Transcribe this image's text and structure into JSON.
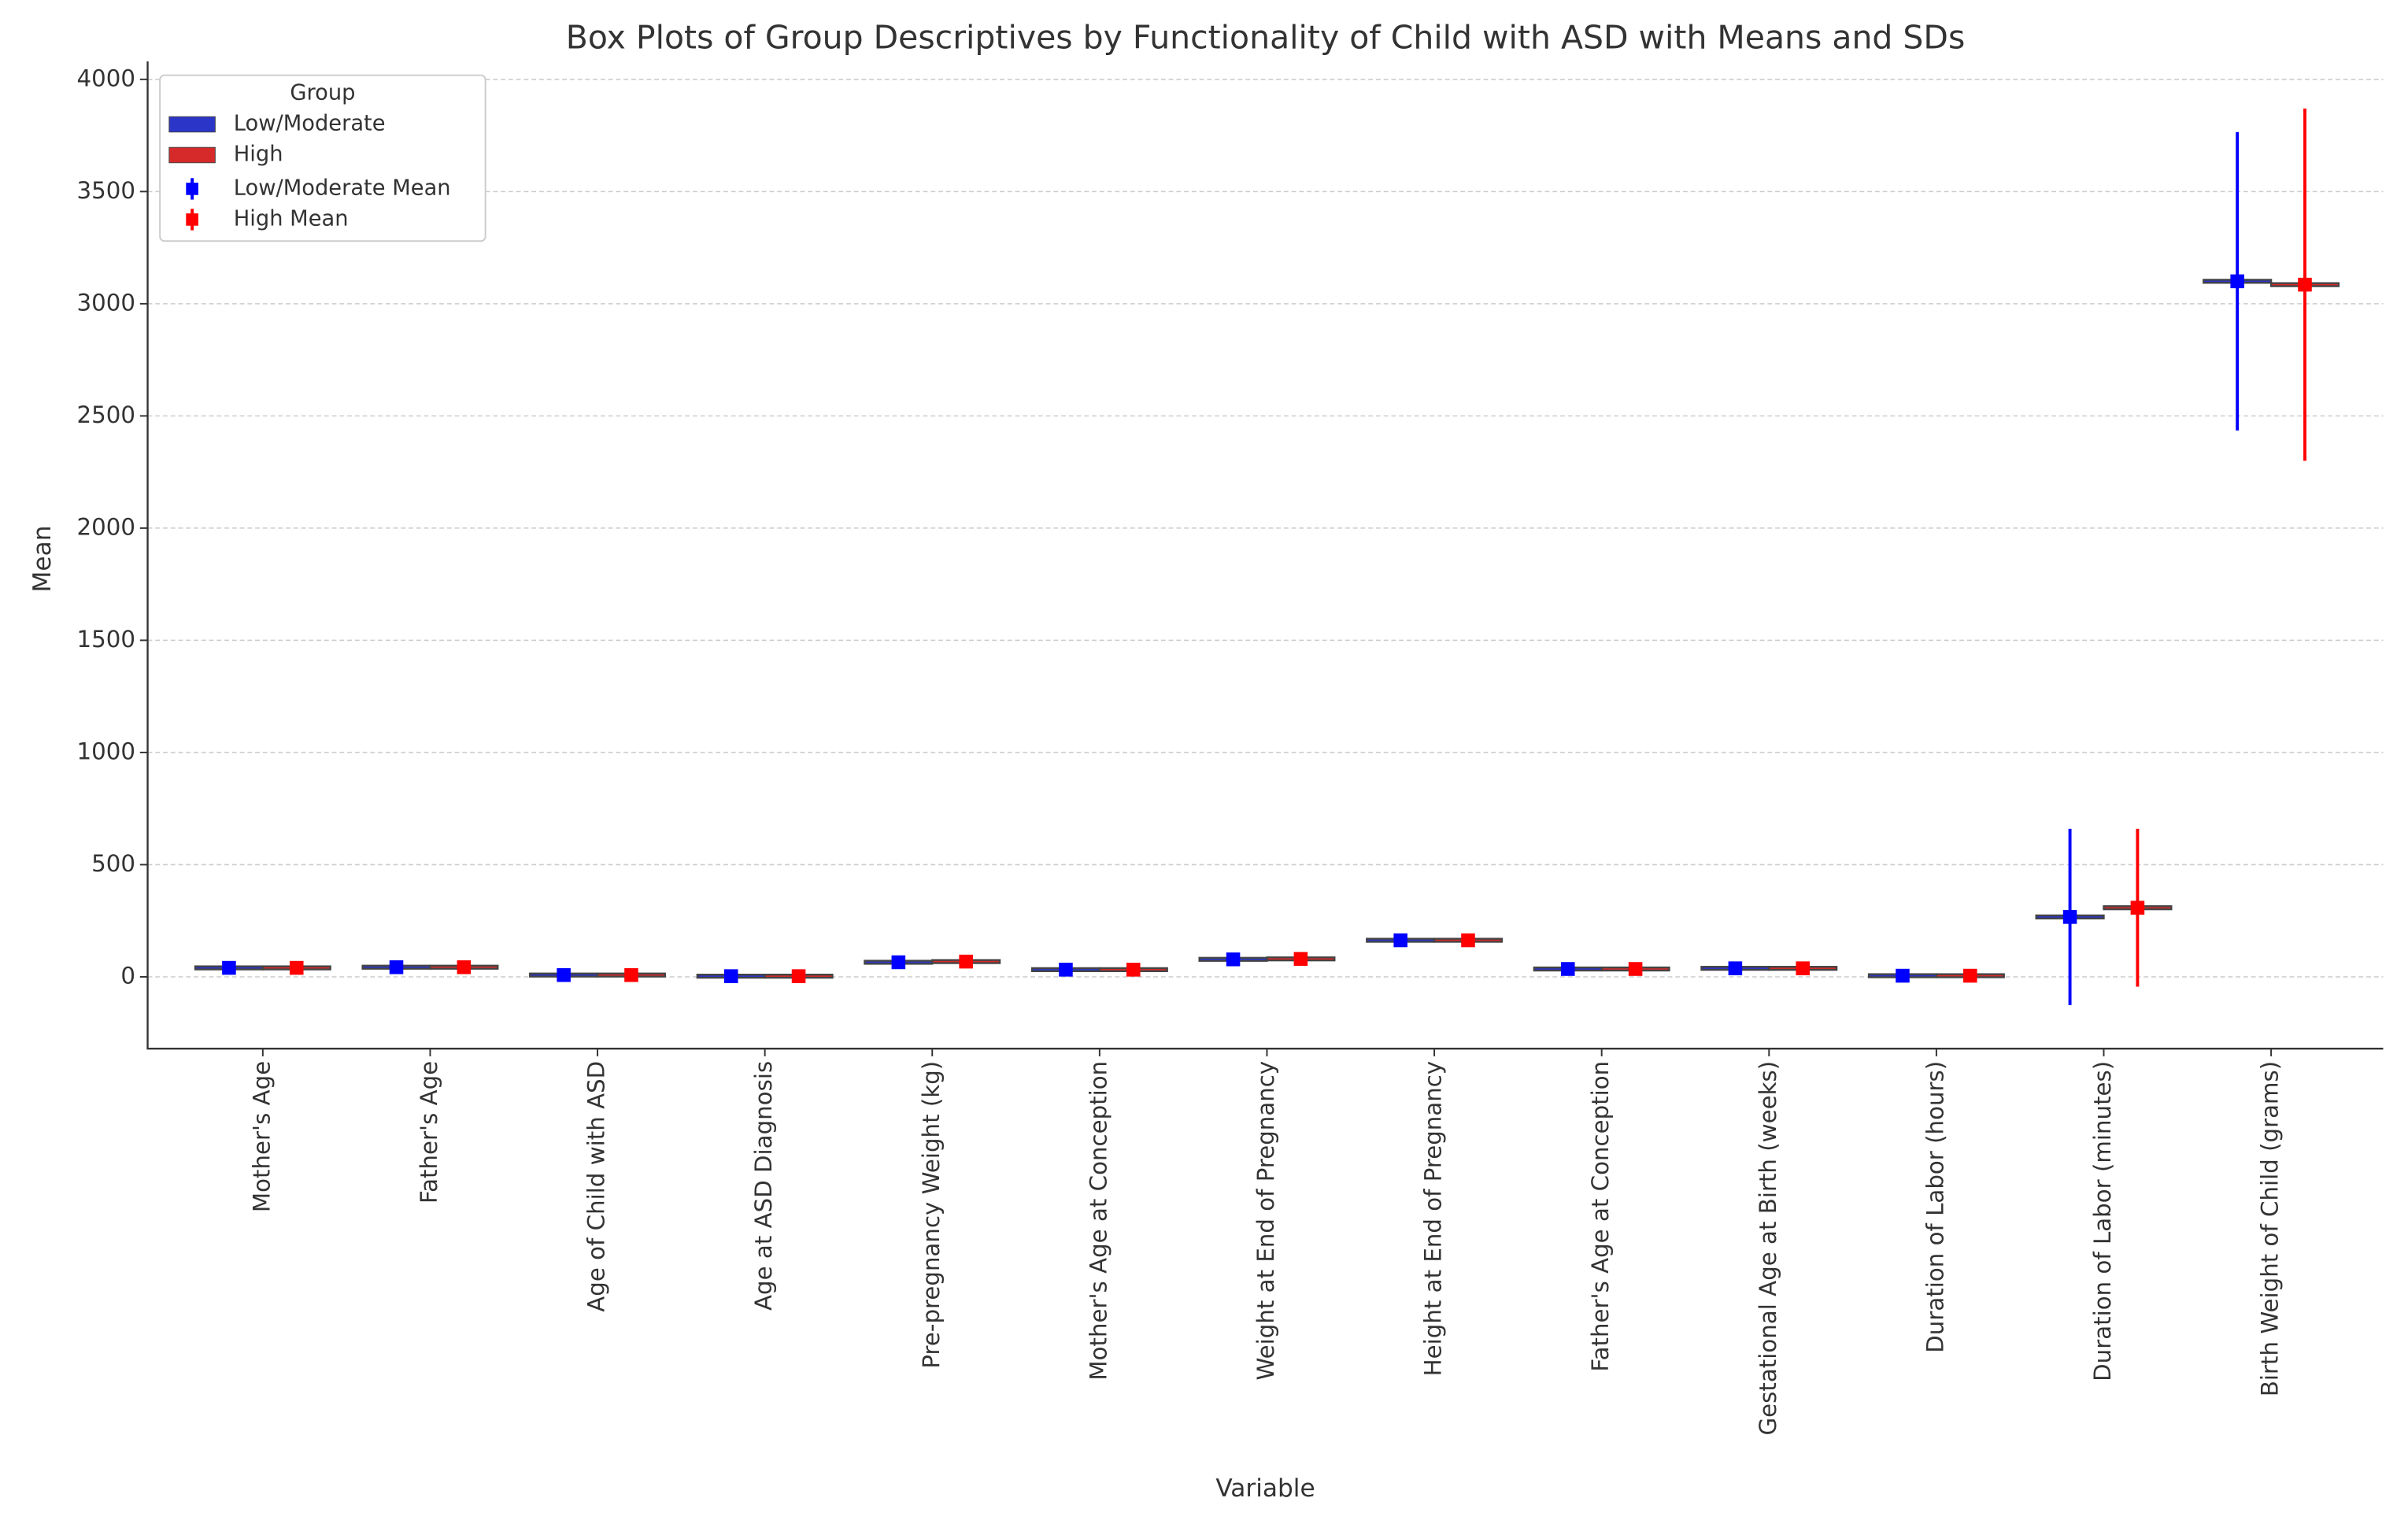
{
  "chart_data": {
    "type": "box",
    "title": "Box Plots of Group Descriptives by Functionality of Child with ASD with Means and SDs",
    "x_label": "Variable",
    "y_label": "Mean",
    "legend_title": "Group",
    "legend_position": "upper left",
    "grid": true,
    "categories": [
      "Mother's Age",
      "Father's Age",
      "Age of Child with ASD",
      "Age at ASD Diagnosis",
      "Pre-pregnancy Weight (kg)",
      "Mother's Age at Conception",
      "Weight at End of Pregnancy",
      "Height at End of Pregnancy",
      "Father's Age at Conception",
      "Gestational Age at Birth (weeks)",
      "Duration of Labor (hours)",
      "Duration of Labor (minutes)",
      "Birth Weight of Child (grams)"
    ],
    "series": [
      {
        "name": "Low/Moderate",
        "mean_name": "Low/Moderate Mean",
        "color": "#0000ff",
        "box_color": "#2b35c8",
        "values": [
          40,
          43,
          8,
          3,
          65,
          32,
          78,
          163,
          35,
          38,
          5,
          267,
          3100
        ],
        "errors": [
          5,
          6,
          4,
          2,
          12,
          5,
          13,
          6,
          6,
          2,
          5,
          393,
          665
        ]
      },
      {
        "name": "High",
        "mean_name": "High Mean",
        "color": "#ff0000",
        "box_color": "#d62a2a",
        "values": [
          40,
          43,
          8,
          3,
          68,
          32,
          80,
          163,
          35,
          38,
          5,
          308,
          3085
        ],
        "errors": [
          5,
          6,
          4,
          2,
          15,
          5,
          13,
          6,
          6,
          2,
          5,
          352,
          785
        ]
      }
    ],
    "ylim": [
      -320,
      4080
    ],
    "yticks": [
      0,
      500,
      1000,
      1500,
      2000,
      2500,
      3000,
      3500,
      4000
    ]
  }
}
